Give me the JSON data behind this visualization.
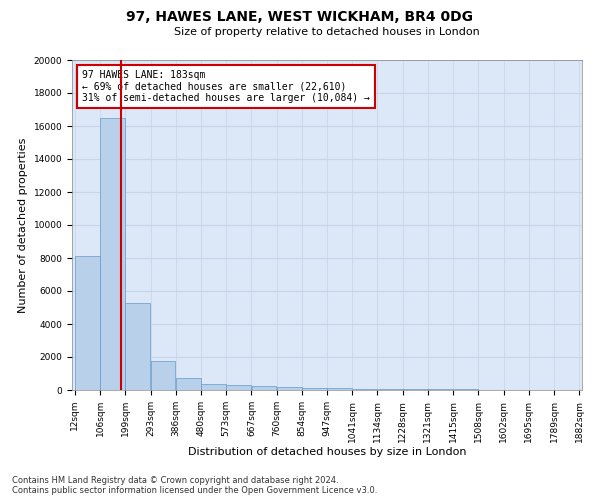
{
  "title": "97, HAWES LANE, WEST WICKHAM, BR4 0DG",
  "subtitle": "Size of property relative to detached houses in London",
  "xlabel": "Distribution of detached houses by size in London",
  "ylabel": "Number of detached properties",
  "property_size": 183,
  "annotation_line1": "97 HAWES LANE: 183sqm",
  "annotation_line2": "← 69% of detached houses are smaller (22,610)",
  "annotation_line3": "31% of semi-detached houses are larger (10,084) →",
  "bar_color": "#b8d0ea",
  "bar_edge_color": "#6699cc",
  "red_line_color": "#cc0000",
  "annotation_box_color": "#cc0000",
  "grid_color": "#c8d4e8",
  "background_color": "#dce8f8",
  "bin_edges": [
    12,
    106,
    199,
    293,
    386,
    480,
    573,
    667,
    760,
    854,
    947,
    1041,
    1134,
    1228,
    1321,
    1415,
    1508,
    1602,
    1695,
    1789,
    1882
  ],
  "bin_heights": [
    8100,
    16500,
    5300,
    1750,
    700,
    380,
    280,
    230,
    200,
    150,
    100,
    80,
    60,
    50,
    40,
    35,
    30,
    25,
    20,
    15
  ],
  "ylim": [
    0,
    20000
  ],
  "yticks": [
    0,
    2000,
    4000,
    6000,
    8000,
    10000,
    12000,
    14000,
    16000,
    18000,
    20000
  ],
  "footer_line1": "Contains HM Land Registry data © Crown copyright and database right 2024.",
  "footer_line2": "Contains public sector information licensed under the Open Government Licence v3.0.",
  "tick_label_fontsize": 6.5,
  "axis_label_fontsize": 8,
  "title_fontsize": 10,
  "subtitle_fontsize": 8,
  "annotation_fontsize": 7,
  "footer_fontsize": 6
}
